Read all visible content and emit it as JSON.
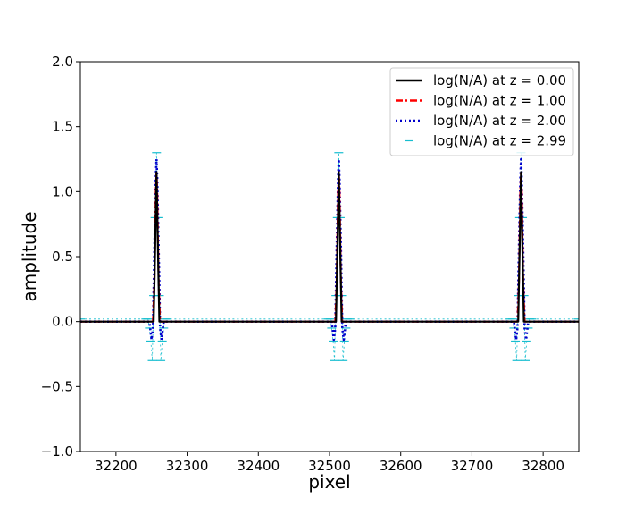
{
  "chart_data": {
    "type": "line",
    "title": "",
    "xlabel": "pixel",
    "ylabel": "amplitude",
    "xlim": [
      32150,
      32850
    ],
    "ylim": [
      -1.0,
      2.0
    ],
    "x_ticks": [
      32200,
      32300,
      32400,
      32500,
      32600,
      32700,
      32800
    ],
    "x_tick_labels": [
      "32200",
      "32300",
      "32400",
      "32500",
      "32600",
      "32700",
      "32800"
    ],
    "y_ticks": [
      -1.0,
      -0.5,
      0.0,
      0.5,
      1.0,
      1.5,
      2.0
    ],
    "y_tick_labels": [
      "−1.0",
      "−0.5",
      "0.0",
      "0.5",
      "1.0",
      "1.5",
      "2.0"
    ],
    "grid": false,
    "legend_position": "top-right",
    "peak_centers": [
      32257,
      32513,
      32769
    ],
    "series": [
      {
        "name": "log(N/A) at z = 0.00",
        "color": "#000000",
        "style": "solid",
        "peak_profile": {
          "dx": [
            -16,
            -4,
            -2,
            0,
            2,
            4,
            16
          ],
          "y": [
            0.0,
            0.0,
            0.55,
            1.15,
            0.55,
            0.0,
            0.0
          ]
        }
      },
      {
        "name": "log(N/A) at z = 1.00",
        "color": "#ff0000",
        "style": "dashdot",
        "peak_profile": {
          "dx": [
            -16,
            -5,
            -3,
            -1,
            0,
            1,
            3,
            5,
            16
          ],
          "y": [
            0.0,
            0.0,
            0.3,
            1.0,
            1.15,
            1.0,
            0.3,
            0.0,
            0.0
          ]
        }
      },
      {
        "name": "log(N/A) at z = 2.00",
        "color": "#0000cc",
        "style": "dotted",
        "peak_profile": {
          "dx": [
            -16,
            -10,
            -7,
            -5,
            -3,
            -1,
            0,
            1,
            3,
            5,
            7,
            10,
            16
          ],
          "y": [
            0.0,
            0.0,
            -0.14,
            -0.05,
            0.55,
            1.1,
            1.25,
            1.1,
            0.55,
            -0.05,
            -0.14,
            0.0,
            0.0
          ]
        }
      },
      {
        "name": "log(N/A) at z = 2.99",
        "color": "#17becf",
        "style": "dash-marker",
        "peak_profile": {
          "dx": [
            -15,
            -12,
            -10,
            -8,
            -6,
            -4,
            -2,
            0,
            2,
            4,
            6,
            8,
            10,
            12,
            15
          ],
          "y": [
            0.02,
            0.02,
            -0.05,
            -0.15,
            -0.3,
            0.2,
            0.8,
            1.3,
            0.8,
            0.2,
            -0.3,
            -0.15,
            -0.05,
            0.02,
            0.02
          ]
        }
      }
    ]
  }
}
